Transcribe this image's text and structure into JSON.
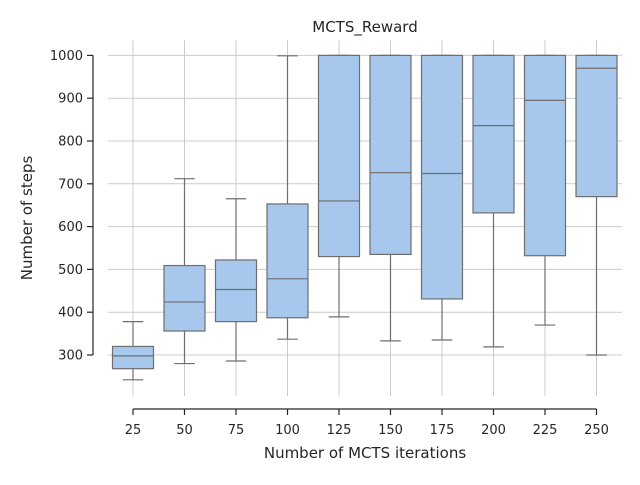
{
  "chart_data": {
    "type": "box",
    "title": "MCTS_Reward",
    "xlabel": "Number of MCTS iterations",
    "ylabel": "Number of steps",
    "categories": [
      "25",
      "50",
      "75",
      "100",
      "125",
      "150",
      "175",
      "200",
      "225",
      "250"
    ],
    "boxes": [
      {
        "min": 242,
        "q1": 268,
        "median": 298,
        "q3": 320,
        "max": 378
      },
      {
        "min": 280,
        "q1": 356,
        "median": 424,
        "q3": 509,
        "max": 712
      },
      {
        "min": 286,
        "q1": 378,
        "median": 453,
        "q3": 522,
        "max": 665
      },
      {
        "min": 337,
        "q1": 387,
        "median": 478,
        "q3": 653,
        "max": 999
      },
      {
        "min": 389,
        "q1": 530,
        "median": 660,
        "q3": 1000,
        "max": 1000
      },
      {
        "min": 333,
        "q1": 535,
        "median": 726,
        "q3": 1000,
        "max": 1000
      },
      {
        "min": 335,
        "q1": 431,
        "median": 724,
        "q3": 1000,
        "max": 1000
      },
      {
        "min": 319,
        "q1": 632,
        "median": 836,
        "q3": 1000,
        "max": 1000
      },
      {
        "min": 370,
        "q1": 532,
        "median": 895,
        "q3": 1000,
        "max": 1000
      },
      {
        "min": 300,
        "q1": 670,
        "median": 970,
        "q3": 1000,
        "max": 1000
      }
    ],
    "yticks": [
      300,
      400,
      500,
      600,
      700,
      800,
      900,
      1000
    ],
    "ylim": [
      200,
      1040
    ],
    "grid": true,
    "colors": {
      "box_fill": "#a7c8ec",
      "box_edge": "#6e6e6e",
      "grid": "#cccccc"
    }
  }
}
